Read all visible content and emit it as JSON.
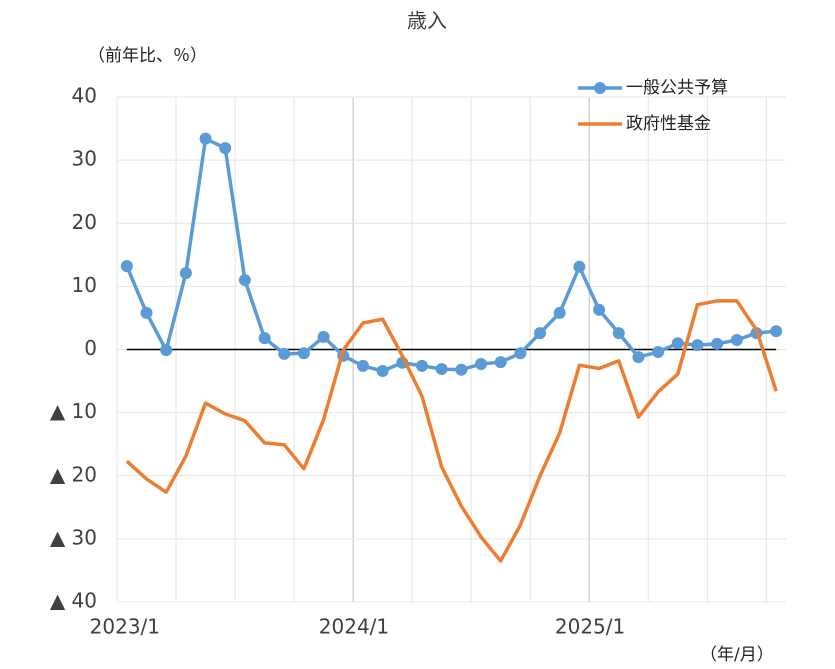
{
  "chart_data": {
    "type": "line",
    "title": "歳入",
    "y_label": "（前年比、％）",
    "x_label": "（年/月）",
    "categories": [
      "2023/1",
      null,
      null,
      null,
      null,
      null,
      null,
      null,
      null,
      null,
      null,
      null,
      "2024/1",
      null,
      null,
      null,
      null,
      null,
      null,
      null,
      null,
      null,
      null,
      null,
      "2025/1",
      null,
      null,
      null,
      null,
      null,
      null,
      null,
      null,
      null
    ],
    "series": [
      {
        "name": "一般公共予算",
        "color": "#5b9bd5",
        "marker": true,
        "values": [
          13.2,
          5.8,
          -0.1,
          12.1,
          33.4,
          31.9,
          11.0,
          1.8,
          -0.7,
          -0.6,
          2.0,
          -1.0,
          -2.6,
          -3.4,
          -2.1,
          -2.6,
          -3.1,
          -3.2,
          -2.3,
          -2.0,
          -0.6,
          2.6,
          5.8,
          13.1,
          6.3,
          2.6,
          -1.2,
          -0.4,
          1.0,
          0.7,
          0.9,
          1.5,
          2.6,
          2.9
        ]
      },
      {
        "name": "政府性基金",
        "color": "#ed7d31",
        "marker": false,
        "values": [
          -17.7,
          -20.5,
          -22.6,
          -16.9,
          -8.5,
          -10.2,
          -11.3,
          -14.8,
          -15.1,
          -18.9,
          -11.1,
          -0.1,
          4.2,
          4.8,
          -1.0,
          -7.4,
          -18.6,
          -24.8,
          -29.7,
          -33.5,
          -27.8,
          -20.0,
          -13.2,
          -2.5,
          -3.0,
          -1.8,
          -10.7,
          -6.7,
          -3.9,
          7.1,
          7.7,
          7.7,
          3.1,
          -6.6
        ]
      }
    ],
    "ylim": [
      -40,
      40
    ],
    "yticks": [
      {
        "value": -40,
        "label": "▲ 40"
      },
      {
        "value": -30,
        "label": "▲ 30"
      },
      {
        "value": -20,
        "label": "▲ 20"
      },
      {
        "value": -10,
        "label": "▲ 10"
      },
      0,
      10,
      20,
      30,
      40
    ],
    "grid": true,
    "legend": "top-right"
  }
}
